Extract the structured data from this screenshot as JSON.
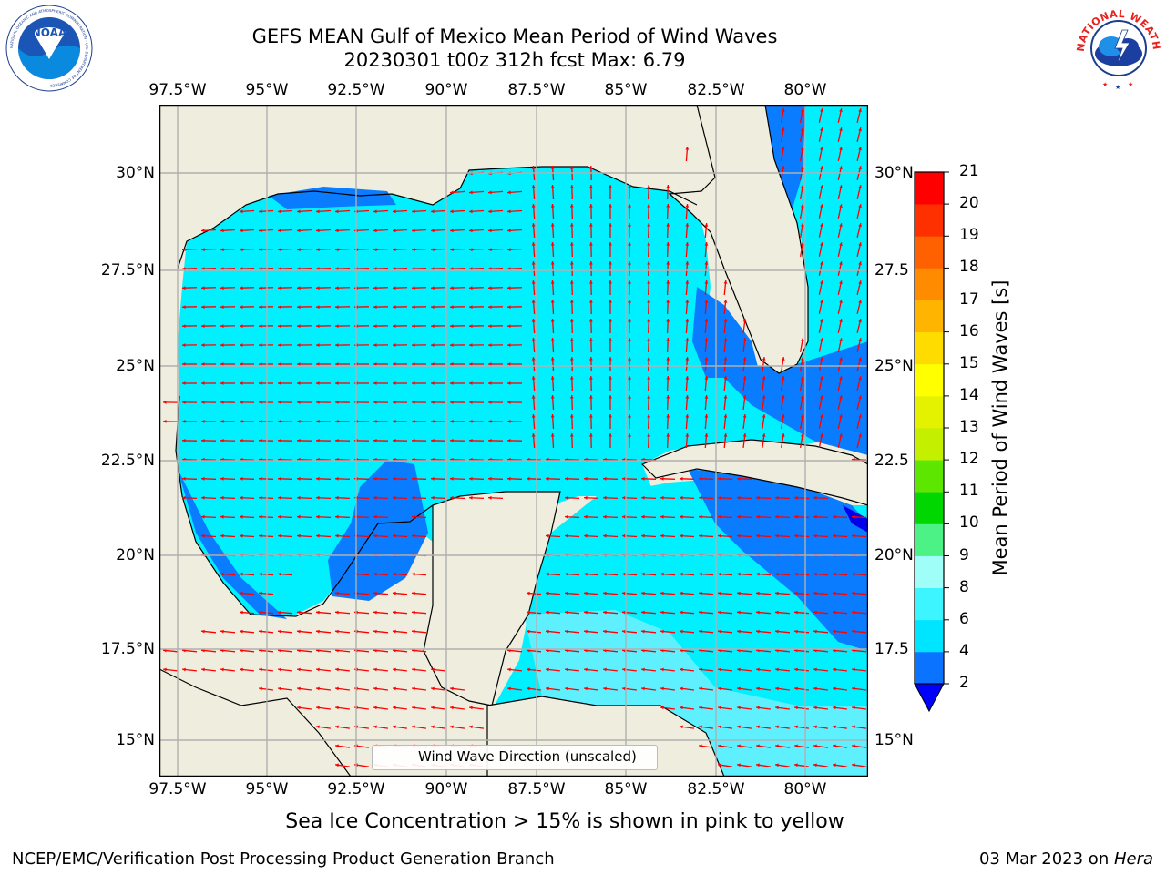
{
  "header": {
    "title_line1": "GEFS MEAN Gulf of Mexico Mean Period of Wind Waves",
    "title_line2": "20230301 t00z 312h fcst   Max: 6.79"
  },
  "logos": {
    "left_text": "NOAA",
    "left_ring_text": "NATIONAL OCEANIC AND ATMOSPHERIC ADMINISTRATION · U.S. DEPARTMENT OF COMMERCE",
    "right_ring_text": "NATIONAL WEATHER SERVICE"
  },
  "axes": {
    "lon_labels": [
      "97.5°W",
      "95°W",
      "92.5°W",
      "90°W",
      "87.5°W",
      "85°W",
      "82.5°W",
      "80°W"
    ],
    "lat_labels_left": [
      "30°N",
      "27.5°N",
      "25°N",
      "22.5°N",
      "20°N",
      "17.5°N",
      "15°N"
    ],
    "lat_labels_right": [
      "30°N",
      "27.5",
      "25°N",
      "22.5",
      "20°N",
      "17.5",
      "15°N"
    ]
  },
  "colorbar": {
    "label": "Mean Period of Wind Waves [s]",
    "ticks": [
      "2",
      "4",
      "6",
      "8",
      "9",
      "10",
      "11",
      "12",
      "13",
      "14",
      "15",
      "16",
      "17",
      "18",
      "19",
      "20",
      "21"
    ],
    "colors": [
      "#0a73ff",
      "#00e5ff",
      "#3cf5ff",
      "#9ffff8",
      "#4cf285",
      "#00d600",
      "#5ce600",
      "#c4f000",
      "#e4f200",
      "#ffff00",
      "#ffdc00",
      "#ffb400",
      "#ff8c00",
      "#ff6000",
      "#ff3000",
      "#ff0000"
    ],
    "extend_color": "#0000ff"
  },
  "legend": {
    "text": "Wind Wave Direction (unscaled)"
  },
  "footer": {
    "subtitle": "Sea Ice Concentration > 15% is shown in pink to yellow",
    "left": "NCEP/EMC/Verification Post Processing Product Generation Branch",
    "date": "03 Mar 2023 on ",
    "machine": "Hera"
  },
  "map_colors": {
    "land": "#efedde",
    "ocean_cyan": "#00f0ff",
    "ocean_blue": "#0a7cff",
    "ocean_dark": "#0000ee",
    "ocean_light": "#5ef0ff",
    "arrow": "#ff0000",
    "grid": "#b0b0b0"
  }
}
